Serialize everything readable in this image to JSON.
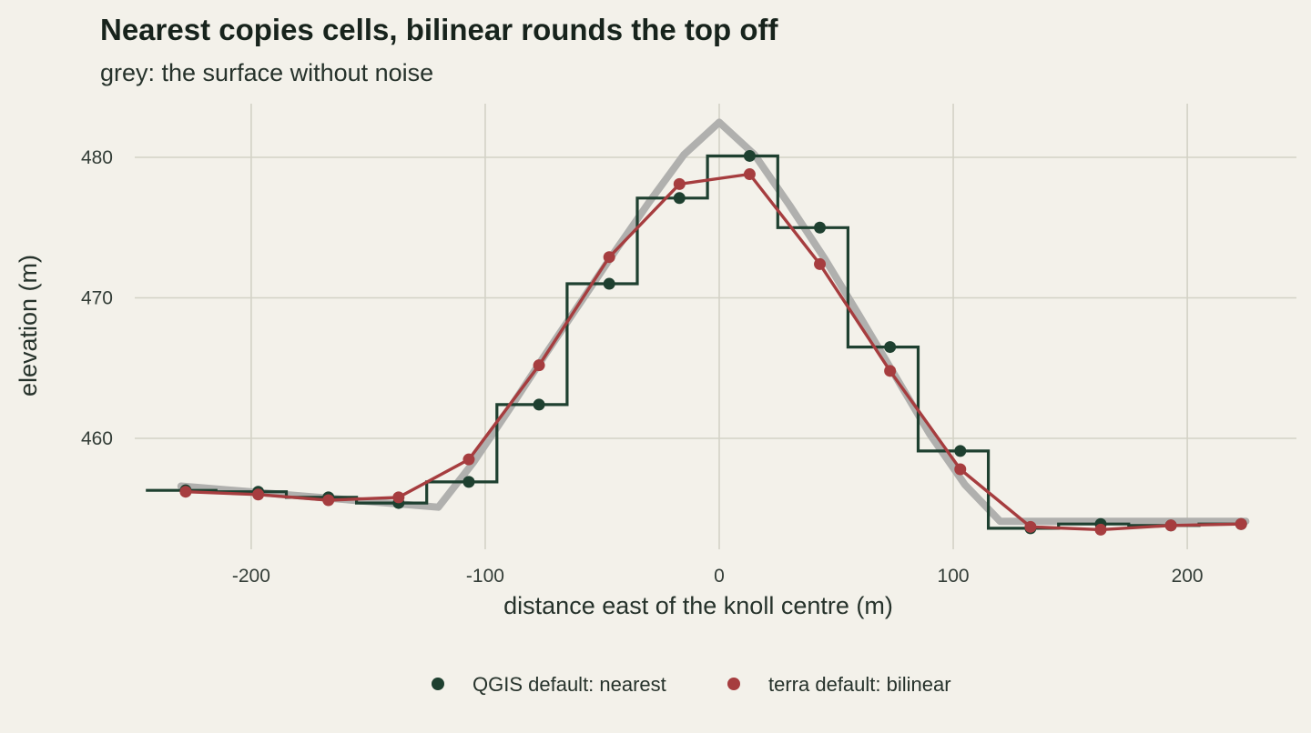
{
  "chart_data": {
    "type": "line",
    "title": "Nearest copies cells, bilinear rounds the top off",
    "subtitle": "grey: the surface without noise",
    "xlabel": "distance east of the knoll centre (m)",
    "ylabel": "elevation (m)",
    "xlim": [
      -240,
      240
    ],
    "ylim": [
      452,
      484
    ],
    "x_ticks": [
      -200,
      -100,
      0,
      100,
      200
    ],
    "x_tick_labels": [
      "-200",
      "-100",
      "0",
      "100",
      "200"
    ],
    "y_ticks": [
      460,
      470,
      480
    ],
    "y_tick_labels": [
      "460",
      "470",
      "480"
    ],
    "grid": true,
    "legend_position": "bottom",
    "colors": {
      "background": "#f3f1ea",
      "true_surface": "#b0b0ae",
      "nearest": "#1e4030",
      "bilinear": "#a63d3f"
    },
    "true_surface": {
      "x": [
        -230,
        -120,
        -105,
        -90,
        -75,
        -60,
        -45,
        -30,
        -15,
        0,
        15,
        30,
        45,
        60,
        75,
        90,
        105,
        120,
        225
      ],
      "y": [
        456.6,
        455.1,
        458.3,
        462.0,
        465.8,
        469.5,
        473.2,
        476.8,
        480.2,
        482.5,
        480.2,
        476.6,
        472.8,
        468.7,
        464.5,
        460.3,
        456.7,
        454.1,
        454.1
      ]
    },
    "series": [
      {
        "name": "QGIS default: nearest",
        "style": "step",
        "step_edges": [
          -245,
          -215,
          -185,
          -155,
          -125,
          -95,
          -65,
          -35,
          -5,
          25,
          55,
          85,
          115,
          145,
          175,
          205,
          225
        ],
        "step_values": [
          456.3,
          456.2,
          455.8,
          455.4,
          456.9,
          462.4,
          471.0,
          477.1,
          480.1,
          475.0,
          466.5,
          459.1,
          453.6,
          453.9,
          453.8,
          453.9
        ],
        "x": [
          -228,
          -197,
          -167,
          -137,
          -107,
          -77,
          -47,
          -17,
          13,
          43,
          73,
          103,
          133,
          163,
          193,
          223
        ],
        "y": [
          456.3,
          456.2,
          455.8,
          455.4,
          456.9,
          462.4,
          471.0,
          477.1,
          480.1,
          475.0,
          466.5,
          459.1,
          453.6,
          453.9,
          453.8,
          453.9
        ]
      },
      {
        "name": "terra default: bilinear",
        "style": "line",
        "x": [
          -228,
          -197,
          -167,
          -137,
          -107,
          -77,
          -47,
          -17,
          13,
          43,
          73,
          103,
          133,
          163,
          193,
          223
        ],
        "y": [
          456.2,
          456.0,
          455.6,
          455.8,
          458.5,
          465.2,
          472.9,
          478.1,
          478.8,
          472.4,
          464.8,
          457.8,
          453.7,
          453.5,
          453.8,
          453.9
        ]
      }
    ]
  }
}
